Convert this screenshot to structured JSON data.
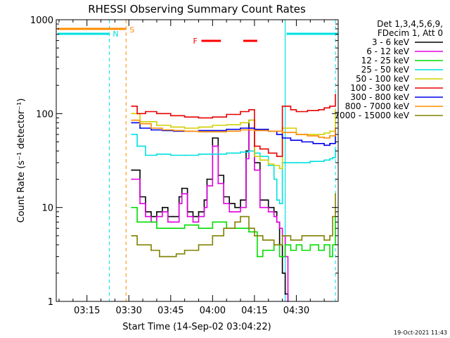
{
  "chart_data": {
    "type": "line",
    "title": "RHESSI Observing Summary Count Rates",
    "ylabel": "Count Rate (s⁻¹ detector⁻¹)",
    "xlabel": "Start Time (14-Sep-02 03:04:22)",
    "y_scale": "log",
    "ylim": [
      1,
      1000
    ],
    "xlim_minutes": [
      184,
      285
    ],
    "x_tick_minutes": [
      195,
      210,
      225,
      240,
      255,
      270
    ],
    "x_tick_labels": [
      "03:15",
      "03:30",
      "03:45",
      "04:00",
      "04:15",
      "04:30"
    ],
    "y_tick_labels": [
      "1",
      "10",
      "100",
      "1000"
    ],
    "legend_header": [
      "Det 1,3,4,5,6,9,",
      "FDecim 1, Att 0"
    ],
    "legend_position": "right",
    "grid": false,
    "footer": "19-Oct-2021 11:43",
    "series": [
      {
        "name": "3 - 6 keV",
        "color": "#000000",
        "x": [
          211,
          214,
          216,
          218,
          220,
          222,
          224,
          226,
          228,
          229,
          231,
          233,
          235,
          237,
          238,
          240,
          242,
          244,
          246,
          248,
          250,
          252,
          253,
          255,
          257,
          260,
          262,
          263,
          264,
          265,
          266,
          267
        ],
        "y": [
          25,
          13,
          9,
          8,
          9,
          10,
          8,
          8,
          13,
          16,
          9,
          8,
          9,
          12,
          20,
          55,
          22,
          13,
          11,
          10,
          12,
          40,
          85,
          30,
          12,
          10,
          9,
          7,
          4,
          2,
          1.2,
          1
        ]
      },
      {
        "name": "6 - 12 keV",
        "color": "#e000e0",
        "x": [
          211,
          214,
          216,
          218,
          220,
          222,
          224,
          226,
          228,
          229,
          231,
          233,
          235,
          237,
          238,
          240,
          242,
          244,
          246,
          248,
          250,
          252,
          253,
          255,
          257,
          260,
          262,
          263,
          264,
          265,
          266,
          267
        ],
        "y": [
          20,
          11,
          8,
          7,
          8,
          9,
          7,
          7,
          11,
          14,
          8,
          7,
          8,
          10,
          17,
          45,
          18,
          11,
          9,
          9,
          10,
          33,
          70,
          25,
          10,
          9,
          8,
          7,
          6,
          5,
          3,
          1
        ]
      },
      {
        "name": "12 - 25 keV",
        "color": "#00dd00",
        "x": [
          211,
          213,
          216,
          220,
          225,
          230,
          235,
          240,
          245,
          250,
          253,
          256,
          258,
          260,
          262,
          264,
          266,
          268,
          270,
          272,
          275,
          278,
          280,
          282,
          283,
          284
        ],
        "y": [
          10,
          7,
          7,
          6,
          6,
          6.5,
          6,
          7,
          6,
          6,
          5.5,
          3,
          3.5,
          3.5,
          4,
          3,
          4,
          3.5,
          4,
          3.5,
          4,
          3.5,
          4,
          3,
          4,
          8
        ]
      },
      {
        "name": "25 - 50 keV",
        "color": "#00e0e0",
        "x": [
          211,
          213,
          216,
          220,
          225,
          230,
          235,
          240,
          245,
          250,
          253,
          255,
          257,
          260,
          262,
          263,
          264,
          265,
          270,
          275,
          280,
          282,
          283,
          284
        ],
        "y": [
          60,
          45,
          36,
          37,
          36,
          36,
          37,
          37,
          38,
          39,
          40,
          38,
          35,
          28,
          20,
          12,
          11,
          30,
          30,
          31,
          32,
          33,
          34,
          42
        ]
      },
      {
        "name": "50 - 100 keV",
        "color": "#d0d000",
        "x": [
          211,
          214,
          220,
          225,
          230,
          235,
          240,
          245,
          250,
          253,
          255,
          257,
          260,
          262,
          264,
          265,
          270,
          275,
          280,
          282,
          284
        ],
        "y": [
          100,
          82,
          75,
          72,
          70,
          72,
          75,
          76,
          80,
          85,
          35,
          32,
          29,
          28,
          26,
          70,
          60,
          60,
          62,
          65,
          110
        ]
      },
      {
        "name": "100 - 300 keV",
        "color": "#e80000",
        "x": [
          211,
          213,
          216,
          220,
          225,
          230,
          235,
          240,
          245,
          250,
          253,
          255,
          257,
          260,
          263,
          265,
          268,
          270,
          274,
          278,
          280,
          282,
          284
        ],
        "y": [
          120,
          100,
          105,
          100,
          95,
          92,
          90,
          92,
          98,
          105,
          110,
          45,
          42,
          38,
          35,
          120,
          110,
          105,
          108,
          110,
          115,
          120,
          160
        ]
      },
      {
        "name": "300 - 800 keV",
        "color": "#0000ee",
        "x": [
          211,
          214,
          218,
          222,
          226,
          230,
          235,
          240,
          245,
          250,
          255,
          260,
          263,
          265,
          268,
          272,
          276,
          280,
          282,
          284
        ],
        "y": [
          80,
          70,
          67,
          66,
          65,
          65,
          66,
          66,
          68,
          70,
          68,
          65,
          60,
          55,
          52,
          50,
          48,
          46,
          48,
          70
        ]
      },
      {
        "name": "800 - 7000 keV",
        "color": "#ff8c00",
        "x": [
          211,
          214,
          218,
          222,
          226,
          230,
          235,
          240,
          245,
          250,
          255,
          260,
          265,
          270,
          274,
          278,
          280,
          282,
          284
        ],
        "y": [
          85,
          78,
          70,
          67,
          66,
          65,
          64,
          64,
          65,
          67,
          66,
          65,
          63,
          60,
          58,
          56,
          55,
          58,
          70
        ]
      },
      {
        "name": "7000 - 15000 keV",
        "color": "#808000",
        "x": [
          211,
          213,
          215,
          218,
          221,
          224,
          227,
          230,
          235,
          240,
          244,
          248,
          250,
          253,
          255,
          258,
          262,
          265,
          268,
          272,
          276,
          280,
          282,
          283,
          284
        ],
        "y": [
          5,
          4,
          4,
          3.5,
          3,
          3,
          3.2,
          3.5,
          4,
          5,
          6,
          7,
          8,
          6,
          5,
          4.5,
          4,
          5,
          4.5,
          5,
          5,
          4.5,
          5,
          8,
          14
        ]
      }
    ],
    "annotations": {
      "saa_flag_label": "S",
      "night_flag_label": "N",
      "flare_flag_label": "F",
      "saa_flag_color": "#ff8c00",
      "night_flag_color": "#00e0e0",
      "flare_flag_color": "#ff0000",
      "saa_flag_x": [
        184,
        209
      ],
      "night_flag_x": [
        [
          184,
          203
        ],
        [
          266,
          285
        ]
      ],
      "flare_flag_x": [
        [
          236,
          243
        ],
        [
          251,
          256
        ]
      ],
      "dashed_lines_night_x": [
        203,
        284
      ],
      "dashed_lines_saa_x": [
        209
      ],
      "solid_line_night_x": [
        266
      ]
    }
  }
}
